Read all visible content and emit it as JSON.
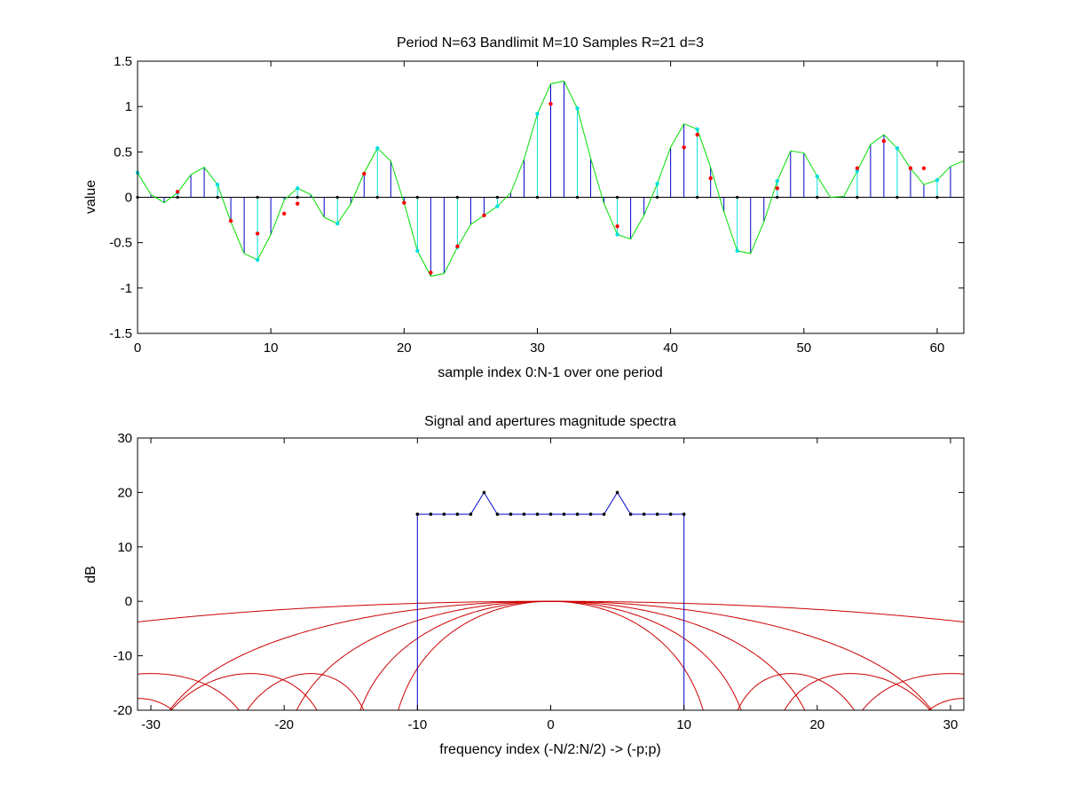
{
  "chart_data": [
    {
      "type": "line",
      "title": "Period N=63  Bandlimit M=10  Samples R=21  d=3",
      "xlabel": "sample index 0:N-1 over one period",
      "ylabel": "value",
      "xlim": [
        0,
        62
      ],
      "ylim": [
        -1.5,
        1.5
      ],
      "xticks": [
        0,
        10,
        20,
        30,
        40,
        50,
        60
      ],
      "yticks": [
        -1.5,
        -1,
        -0.5,
        0,
        0.5,
        1,
        1.5
      ],
      "grid": false,
      "signal": [
        0.27,
        0.03,
        -0.06,
        0.05,
        0.25,
        0.33,
        0.14,
        -0.27,
        -0.62,
        -0.69,
        -0.41,
        -0.03,
        0.1,
        0.03,
        -0.22,
        -0.29,
        -0.07,
        0.27,
        0.54,
        0.4,
        -0.06,
        -0.59,
        -0.87,
        -0.84,
        -0.55,
        -0.3,
        -0.2,
        -0.1,
        0.05,
        0.42,
        0.92,
        1.25,
        1.28,
        0.98,
        0.43,
        -0.07,
        -0.41,
        -0.46,
        -0.2,
        0.15,
        0.55,
        0.81,
        0.75,
        0.33,
        -0.16,
        -0.59,
        -0.62,
        -0.27,
        0.18,
        0.51,
        0.49,
        0.23,
        0.0,
        0.01,
        0.29,
        0.58,
        0.69,
        0.54,
        0.32,
        0.14,
        0.19,
        0.34,
        0.4
      ],
      "sample_indices": [
        0,
        3,
        6,
        9,
        12,
        15,
        18,
        21,
        24,
        27,
        30,
        33,
        36,
        39,
        42,
        45,
        48,
        51,
        54,
        57,
        60
      ],
      "reconstruction": [
        {
          "x": 3,
          "y": 0.06
        },
        {
          "x": 7,
          "y": -0.26
        },
        {
          "x": 9,
          "y": -0.4
        },
        {
          "x": 11,
          "y": -0.18
        },
        {
          "x": 12,
          "y": -0.07
        },
        {
          "x": 17,
          "y": 0.26
        },
        {
          "x": 20,
          "y": -0.06
        },
        {
          "x": 22,
          "y": -0.83
        },
        {
          "x": 24,
          "y": -0.54
        },
        {
          "x": 26,
          "y": -0.2
        },
        {
          "x": 31,
          "y": 1.03
        },
        {
          "x": 36,
          "y": -0.32
        },
        {
          "x": 41,
          "y": 0.55
        },
        {
          "x": 42,
          "y": 0.69
        },
        {
          "x": 43,
          "y": 0.21
        },
        {
          "x": 48,
          "y": 0.1
        },
        {
          "x": 54,
          "y": 0.32
        },
        {
          "x": 56,
          "y": 0.62
        },
        {
          "x": 58,
          "y": 0.32
        },
        {
          "x": 59,
          "y": 0.32
        }
      ],
      "colors": {
        "signal_line": "#00e000",
        "stem": "#0000cc",
        "sample_stem": "#00e0e0",
        "sample_dot": "#00e0e0",
        "reconstruction": "#ff0000",
        "zero_marker": "#000000"
      }
    },
    {
      "type": "line",
      "title": "Signal and apertures magnitude spectra",
      "xlabel": "frequency index (-N/2:N/2) -> (-p;p)",
      "ylabel": "dB",
      "xlim": [
        -31,
        31
      ],
      "ylim": [
        -20,
        30
      ],
      "xticks": [
        -30,
        -20,
        -10,
        0,
        10,
        20,
        30
      ],
      "yticks": [
        -20,
        -10,
        0,
        10,
        20,
        30
      ],
      "grid": false,
      "spectrum": {
        "x": [
          -10,
          -9,
          -8,
          -7,
          -6,
          -5,
          -4,
          -3,
          -2,
          -1,
          0,
          1,
          2,
          3,
          4,
          5,
          6,
          7,
          8,
          9,
          10
        ],
        "y": [
          16,
          16,
          16,
          16,
          16,
          20,
          16,
          16,
          16,
          16,
          16,
          16,
          16,
          16,
          16,
          20,
          16,
          16,
          16,
          16,
          16
        ],
        "color": "#0000cc"
      },
      "apertures": {
        "width_factors": [
          1,
          2,
          3,
          4,
          5
        ],
        "color": "#cc0000"
      }
    }
  ]
}
